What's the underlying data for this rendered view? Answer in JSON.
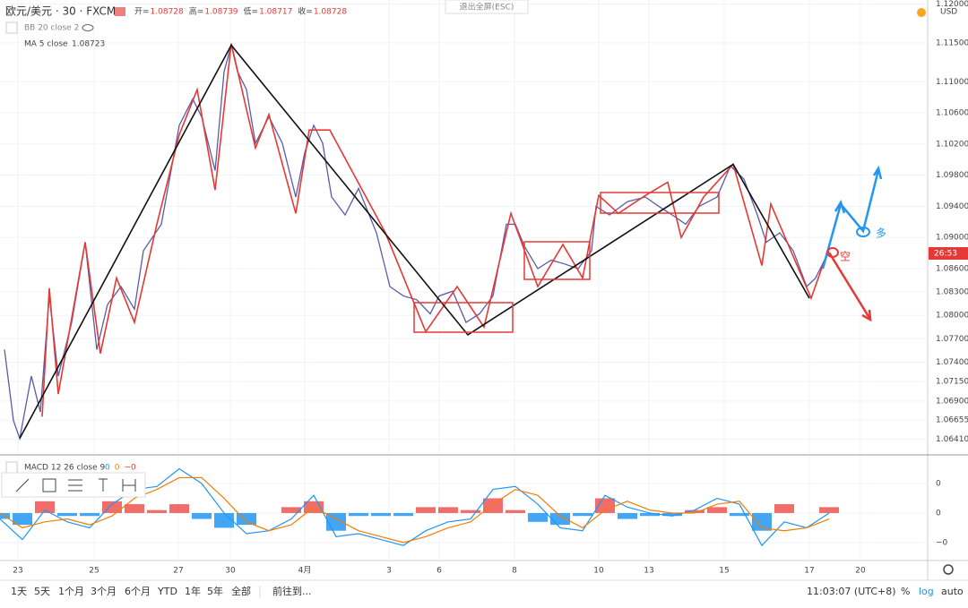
{
  "header": {
    "symbol": "欧元/美元 · 30 · FXCM",
    "ohlc": [
      {
        "label": "开=",
        "value": 1.08728
      },
      {
        "label": "高=",
        "value": 1.08739
      },
      {
        "label": "低=",
        "value": 1.08717
      },
      {
        "label": "收=",
        "value": 1.08728
      }
    ],
    "indicators": [
      {
        "text": "BB 20 close 2"
      },
      {
        "text": "MA 5 close",
        "value": 1.08723
      }
    ],
    "exit_fullscreen": "退出全屏(ESC)"
  },
  "chart_data": [
    {
      "type": "line",
      "currency": "USD",
      "last_price_label": "26:53",
      "annotations": [
        {
          "text": "多",
          "color": "#2196f3"
        },
        {
          "text": "空",
          "color": "#e53935"
        }
      ],
      "xlim": [
        0,
        1035
      ],
      "xticks": [
        {
          "value": 20,
          "label": "23"
        },
        {
          "value": 105,
          "label": "25"
        },
        {
          "value": 199,
          "label": "27"
        },
        {
          "value": 257,
          "label": "30"
        },
        {
          "value": 340,
          "label": "4月"
        },
        {
          "value": 434,
          "label": "3"
        },
        {
          "value": 490,
          "label": "6"
        },
        {
          "value": 574,
          "label": "8"
        },
        {
          "value": 668,
          "label": "10"
        },
        {
          "value": 724,
          "label": "13"
        },
        {
          "value": 808,
          "label": "15"
        },
        {
          "value": 903,
          "label": "17"
        },
        {
          "value": 960,
          "label": "20"
        }
      ],
      "ylim": [
        1.0622,
        1.1205
      ],
      "yticks": [
        {
          "value": 1.0641,
          "label": "1.06410"
        },
        {
          "value": 1.06655,
          "label": "1.06655"
        },
        {
          "value": 1.069,
          "label": "1.06900"
        },
        {
          "value": 1.0715,
          "label": "1.07150"
        },
        {
          "value": 1.074,
          "label": "1.07400"
        },
        {
          "value": 1.077,
          "label": "1.07700"
        },
        {
          "value": 1.08,
          "label": "1.08000"
        },
        {
          "value": 1.083,
          "label": "1.08300"
        },
        {
          "value": 1.086,
          "label": "1.08600"
        },
        {
          "value": 1.09,
          "label": "1.09000"
        },
        {
          "value": 1.094,
          "label": "1.09400"
        },
        {
          "value": 1.098,
          "label": "1.09800"
        },
        {
          "value": 1.102,
          "label": "1.10200"
        },
        {
          "value": 1.106,
          "label": "1.10600"
        },
        {
          "value": 1.11,
          "label": "1.11000"
        },
        {
          "value": 1.115,
          "label": "1.11500"
        },
        {
          "value": 1.12,
          "label": "1.12000"
        }
      ],
      "grid": true,
      "series": [
        {
          "color": "#5b5ba8",
          "width": 1.3,
          "x": [
            5,
            15,
            22,
            35,
            45,
            55,
            65,
            80,
            95,
            108,
            120,
            135,
            150,
            160,
            180,
            200,
            215,
            225,
            240,
            250,
            258,
            265,
            275,
            285,
            300,
            315,
            330,
            340,
            350,
            360,
            370,
            385,
            400,
            420,
            435,
            450,
            465,
            480,
            490,
            505,
            520,
            535,
            550,
            565,
            575,
            585,
            600,
            615,
            630,
            645,
            660,
            665,
            680,
            700,
            720,
            735,
            750,
            765,
            780,
            800,
            815,
            830,
            845,
            855,
            870,
            885,
            900,
            910,
            925
          ],
          "values": [
            1.0756,
            1.0665,
            1.0642,
            1.0722,
            1.0676,
            1.0825,
            1.0722,
            1.0791,
            1.0894,
            1.0756,
            1.0814,
            1.0837,
            1.0808,
            1.0883,
            1.0917,
            1.1044,
            1.1078,
            1.1055,
            1.0986,
            1.1113,
            1.1147,
            1.1113,
            1.109,
            1.1021,
            1.1055,
            1.1021,
            1.0952,
            1.1009,
            1.1044,
            1.1021,
            1.0952,
            1.0929,
            1.0963,
            1.0906,
            1.0837,
            1.0825,
            1.082,
            1.0802,
            1.0825,
            1.0831,
            1.0791,
            1.0802,
            1.0825,
            1.0917,
            1.0917,
            1.0889,
            1.086,
            1.0871,
            1.0866,
            1.086,
            1.0883,
            1.094,
            1.0929,
            1.0946,
            1.0952,
            1.094,
            1.0929,
            1.0917,
            1.094,
            1.0952,
            1.0992,
            1.0975,
            1.0929,
            1.0894,
            1.0906,
            1.0883,
            1.0837,
            1.0848,
            1.0883
          ]
        },
        {
          "color": "#e53935",
          "width": 1.6,
          "x": [
            47,
            55,
            65,
            95,
            112,
            130,
            150,
            175,
            200,
            220,
            240,
            258,
            285,
            300,
            330,
            345,
            368,
            430,
            475,
            510,
            540,
            570,
            600,
            628,
            650,
            668,
            690,
            720,
            745,
            760,
            785,
            818,
            850,
            860,
            905,
            920
          ],
          "values": [
            1.067,
            1.0835,
            1.0699,
            1.0894,
            1.0751,
            1.0848,
            1.0791,
            1.0917,
            1.1032,
            1.109,
            1.0961,
            1.1149,
            1.1015,
            1.1058,
            1.0931,
            1.1038,
            1.1038,
            1.0906,
            1.0779,
            1.0837,
            1.0785,
            1.0931,
            1.0837,
            1.0891,
            1.0848,
            1.0954,
            1.0931,
            1.0954,
            1.0971,
            1.09,
            1.0952,
            1.0994,
            1.0864,
            1.0943,
            1.0822,
            1.0871
          ]
        },
        {
          "color": "#111111",
          "width": 1.6,
          "x": [
            22,
            258,
            522,
            818,
            903
          ],
          "values": [
            1.0642,
            1.1147,
            1.0775,
            1.0994,
            1.0822
          ]
        }
      ]
    },
    {
      "type": "macd",
      "title": "MACD 12 26 close 9",
      "readout": [
        {
          "text": "0",
          "color": "#2196f3"
        },
        {
          "text": "0",
          "color": "#f57c00"
        },
        {
          "text": "−0",
          "color": "#e53935"
        }
      ],
      "ylim": [
        -0.00158,
        0.00185
      ],
      "yticks": [
        {
          "value": 0.001,
          "label": "0"
        },
        {
          "value": 0,
          "label": "0"
        },
        {
          "value": -0.001,
          "label": "−0"
        }
      ],
      "x": [
        0,
        25,
        50,
        75,
        100,
        125,
        150,
        175,
        200,
        225,
        250,
        275,
        300,
        325,
        350,
        375,
        400,
        425,
        450,
        475,
        500,
        525,
        550,
        575,
        600,
        625,
        650,
        675,
        700,
        725,
        750,
        775,
        800,
        825,
        850,
        875,
        900,
        925
      ],
      "histogram": {
        "up_color": "#ef5350",
        "down_color": "#2196f3",
        "values": [
          -0.0002,
          -0.0004,
          0.0004,
          -0.0001,
          -0.0001,
          0.0004,
          0.0003,
          0.0001,
          0.0003,
          -0.0002,
          -0.0005,
          -0.0004,
          0,
          0.0002,
          0.0004,
          -0.0006,
          -0.0001,
          -0.0001,
          -0.0001,
          0.0002,
          0.0002,
          0.0001,
          0.0005,
          0.0001,
          -0.0003,
          -0.0004,
          -0.0001,
          0.0005,
          -0.0002,
          -0.0001,
          -0.0001,
          0.0001,
          0.0002,
          -0.0001,
          -0.0006,
          0.0003,
          0,
          0.0002
        ]
      },
      "series": [
        {
          "color": "#2196f3",
          "values": [
            -0.0002,
            -0.0009,
            0.0001,
            -0.0003,
            -0.0005,
            0.0003,
            0.0008,
            0.0009,
            0.0015,
            0.001,
            0,
            -0.0007,
            -0.0006,
            -0.0002,
            0.0006,
            -0.0008,
            -0.0007,
            -0.0009,
            -0.0011,
            -0.0006,
            -0.0003,
            -0.0002,
            0.0008,
            0.0009,
            0.0003,
            -0.0005,
            -0.0006,
            0.0006,
            0.0002,
            0,
            -0.0001,
            0.0001,
            0.0005,
            0.0003,
            -0.0011,
            -0.0003,
            -0.0005,
            0
          ]
        },
        {
          "color": "#f57c00",
          "values": [
            0,
            -0.0005,
            -0.0003,
            -0.0002,
            -0.0004,
            -0.0001,
            0.0005,
            0.0008,
            0.0012,
            0.0012,
            0.0005,
            -0.0003,
            -0.0006,
            -0.0004,
            0.0002,
            -0.0002,
            -0.0006,
            -0.0008,
            -0.001,
            -0.0008,
            -0.0005,
            -0.0003,
            0.0003,
            0.0008,
            0.0006,
            -0.0001,
            -0.0005,
            0.0001,
            0.0004,
            0.0001,
            0,
            0,
            0.0003,
            0.0004,
            -0.0005,
            -0.0006,
            -0.0005,
            -0.0002
          ]
        }
      ]
    }
  ],
  "toolbar": {
    "ranges": [
      "1天",
      "5天",
      "1个月",
      "3个月",
      "6个月",
      "YTD",
      "1年",
      "5年",
      "全部"
    ],
    "goto": "前往到...",
    "time": "11:03:07 (UTC+8)",
    "options": [
      "%",
      "log",
      "auto"
    ]
  }
}
